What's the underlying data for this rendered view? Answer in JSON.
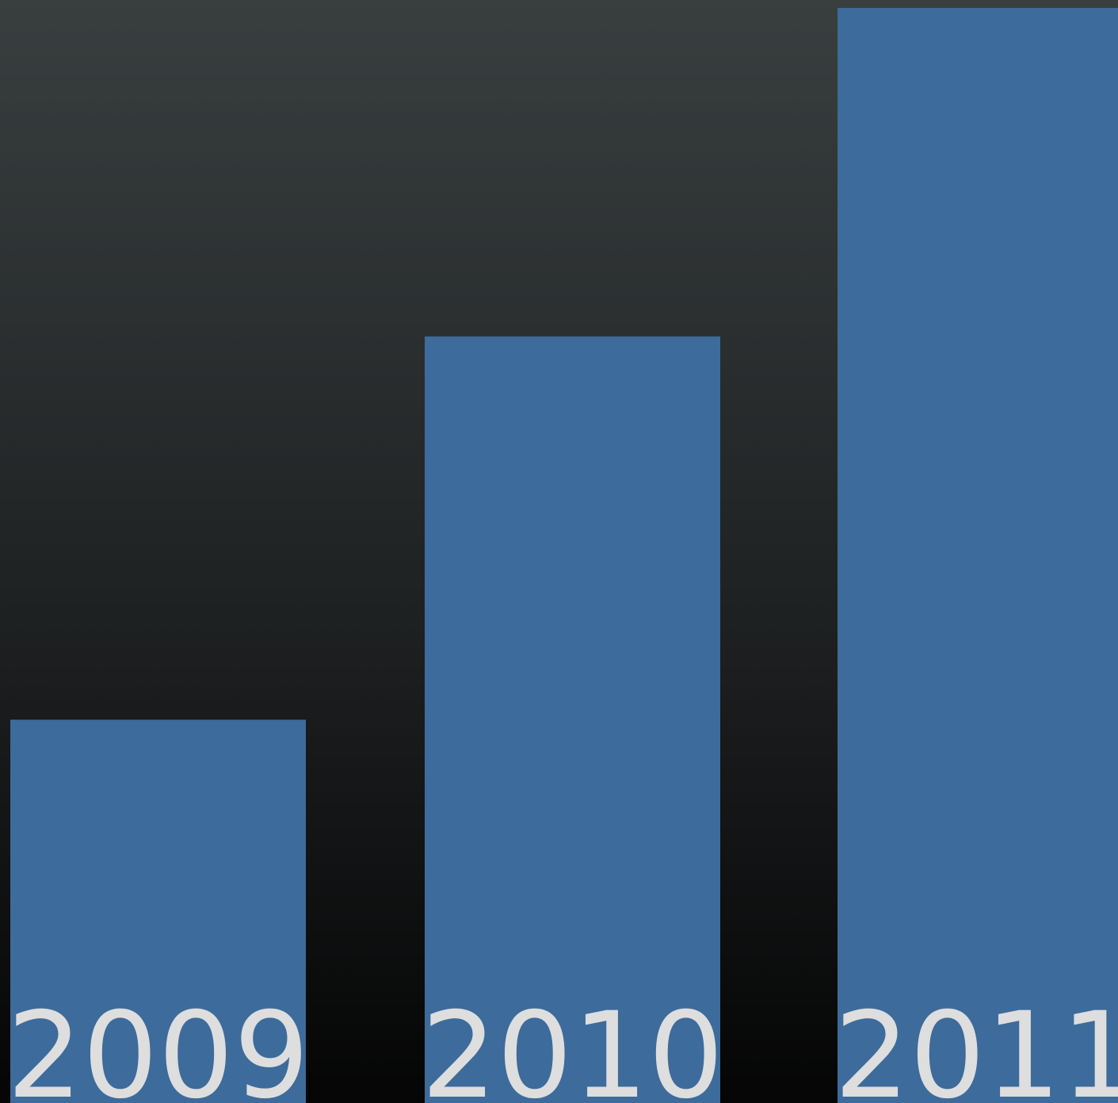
{
  "chart_data": {
    "type": "bar",
    "categories": [
      "2009",
      "2010",
      "2011"
    ],
    "values": [
      35,
      70,
      100
    ],
    "title": "",
    "xlabel": "",
    "ylabel": "",
    "ylim": [
      0,
      100
    ],
    "grid": false,
    "legend": "none",
    "colors": {
      "bar": "#3d6b9b",
      "label": "#dedede",
      "background_top": "#393e3f",
      "background_bottom": "#050505"
    }
  }
}
